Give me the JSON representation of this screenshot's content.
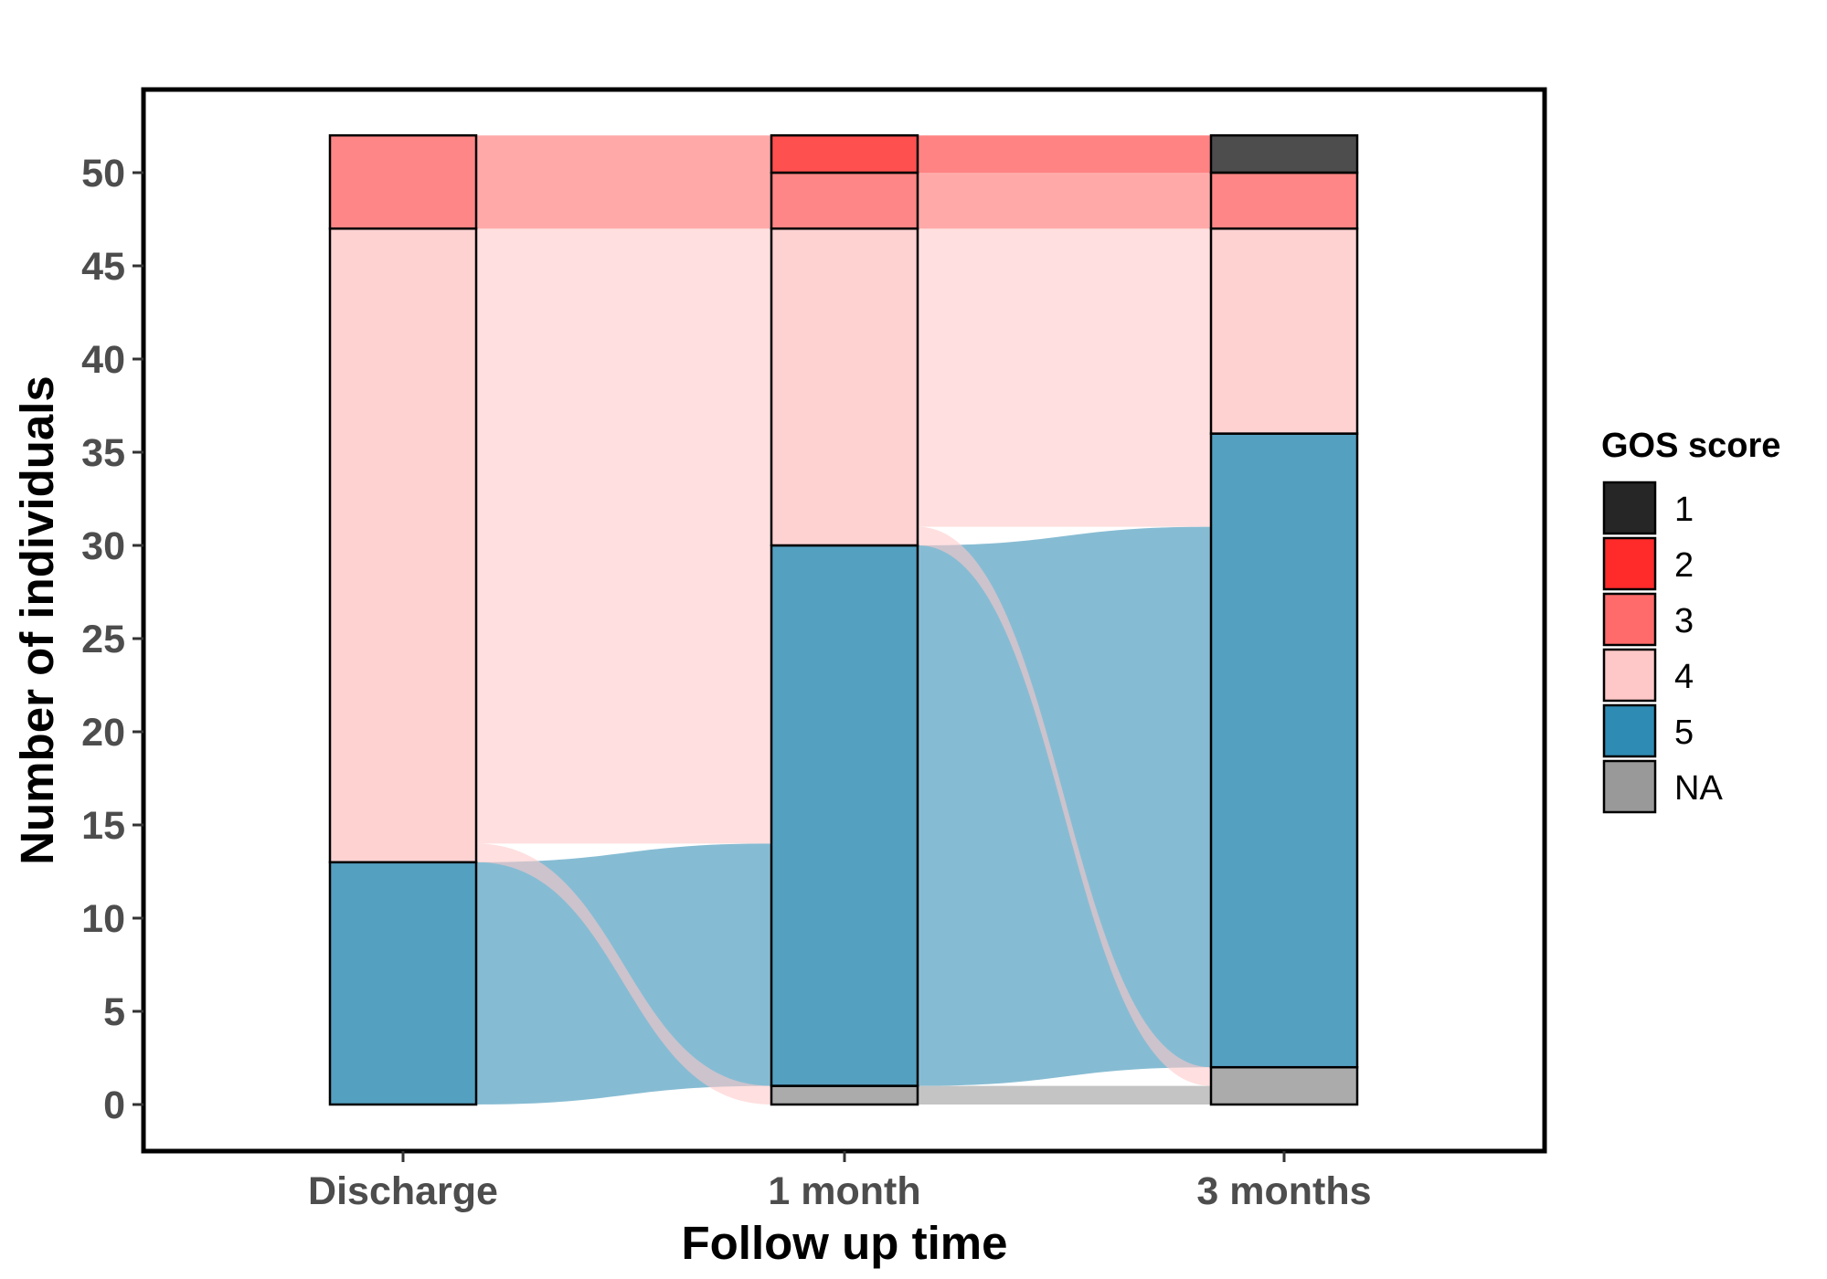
{
  "chart_data": {
    "type": "alluvial",
    "xlabel": "Follow up time",
    "ylabel": "Number of individuals",
    "ylim": [
      0,
      52
    ],
    "y_ticks": [
      0,
      5,
      10,
      15,
      20,
      25,
      30,
      35,
      40,
      45,
      50
    ],
    "categories": [
      "Discharge",
      "1 month",
      "3 months"
    ],
    "grid": false,
    "legend": {
      "title": "GOS score",
      "placement": "right",
      "entries": [
        {
          "label": "1",
          "color": "#262626"
        },
        {
          "label": "2",
          "color": "#ff2a2a"
        },
        {
          "label": "3",
          "color": "#ff6b6b"
        },
        {
          "label": "4",
          "color": "#ffc8c8"
        },
        {
          "label": "5",
          "color": "#2e8bb3"
        },
        {
          "label": "NA",
          "color": "#999999"
        }
      ]
    },
    "stacks": [
      {
        "time": "Discharge",
        "counts": {
          "5": 13,
          "4": 34,
          "3": 5
        }
      },
      {
        "time": "1 month",
        "counts": {
          "NA": 1,
          "5": 29,
          "4": 17,
          "3": 3,
          "2": 2
        }
      },
      {
        "time": "3 months",
        "counts": {
          "NA": 2,
          "5": 34,
          "4": 11,
          "3": 3,
          "1": 2
        }
      }
    ],
    "flows": [
      {
        "from": "Discharge",
        "to": "1 month",
        "segments": [
          {
            "from_y": [
              0,
              13
            ],
            "to_y": [
              1,
              14
            ],
            "group": "5"
          },
          {
            "from_y": [
              13,
              14
            ],
            "to_y": [
              0,
              1
            ],
            "group": "4"
          },
          {
            "from_y": [
              14,
              47
            ],
            "to_y": [
              14,
              47
            ],
            "group": "4"
          },
          {
            "from_y": [
              47,
              52
            ],
            "to_y": [
              47,
              52
            ],
            "group": "3"
          }
        ]
      },
      {
        "from": "1 month",
        "to": "3 months",
        "segments": [
          {
            "from_y": [
              0,
              1
            ],
            "to_y": [
              0,
              1
            ],
            "group": "NA"
          },
          {
            "from_y": [
              1,
              30
            ],
            "to_y": [
              2,
              31
            ],
            "group": "5"
          },
          {
            "from_y": [
              30,
              31
            ],
            "to_y": [
              1,
              2
            ],
            "group": "4"
          },
          {
            "from_y": [
              31,
              47
            ],
            "to_y": [
              31,
              47
            ],
            "group": "4"
          },
          {
            "from_y": [
              47,
              50
            ],
            "to_y": [
              47,
              50
            ],
            "group": "3"
          },
          {
            "from_y": [
              50,
              52
            ],
            "to_y": [
              50,
              52
            ],
            "group": "2"
          }
        ]
      }
    ]
  }
}
